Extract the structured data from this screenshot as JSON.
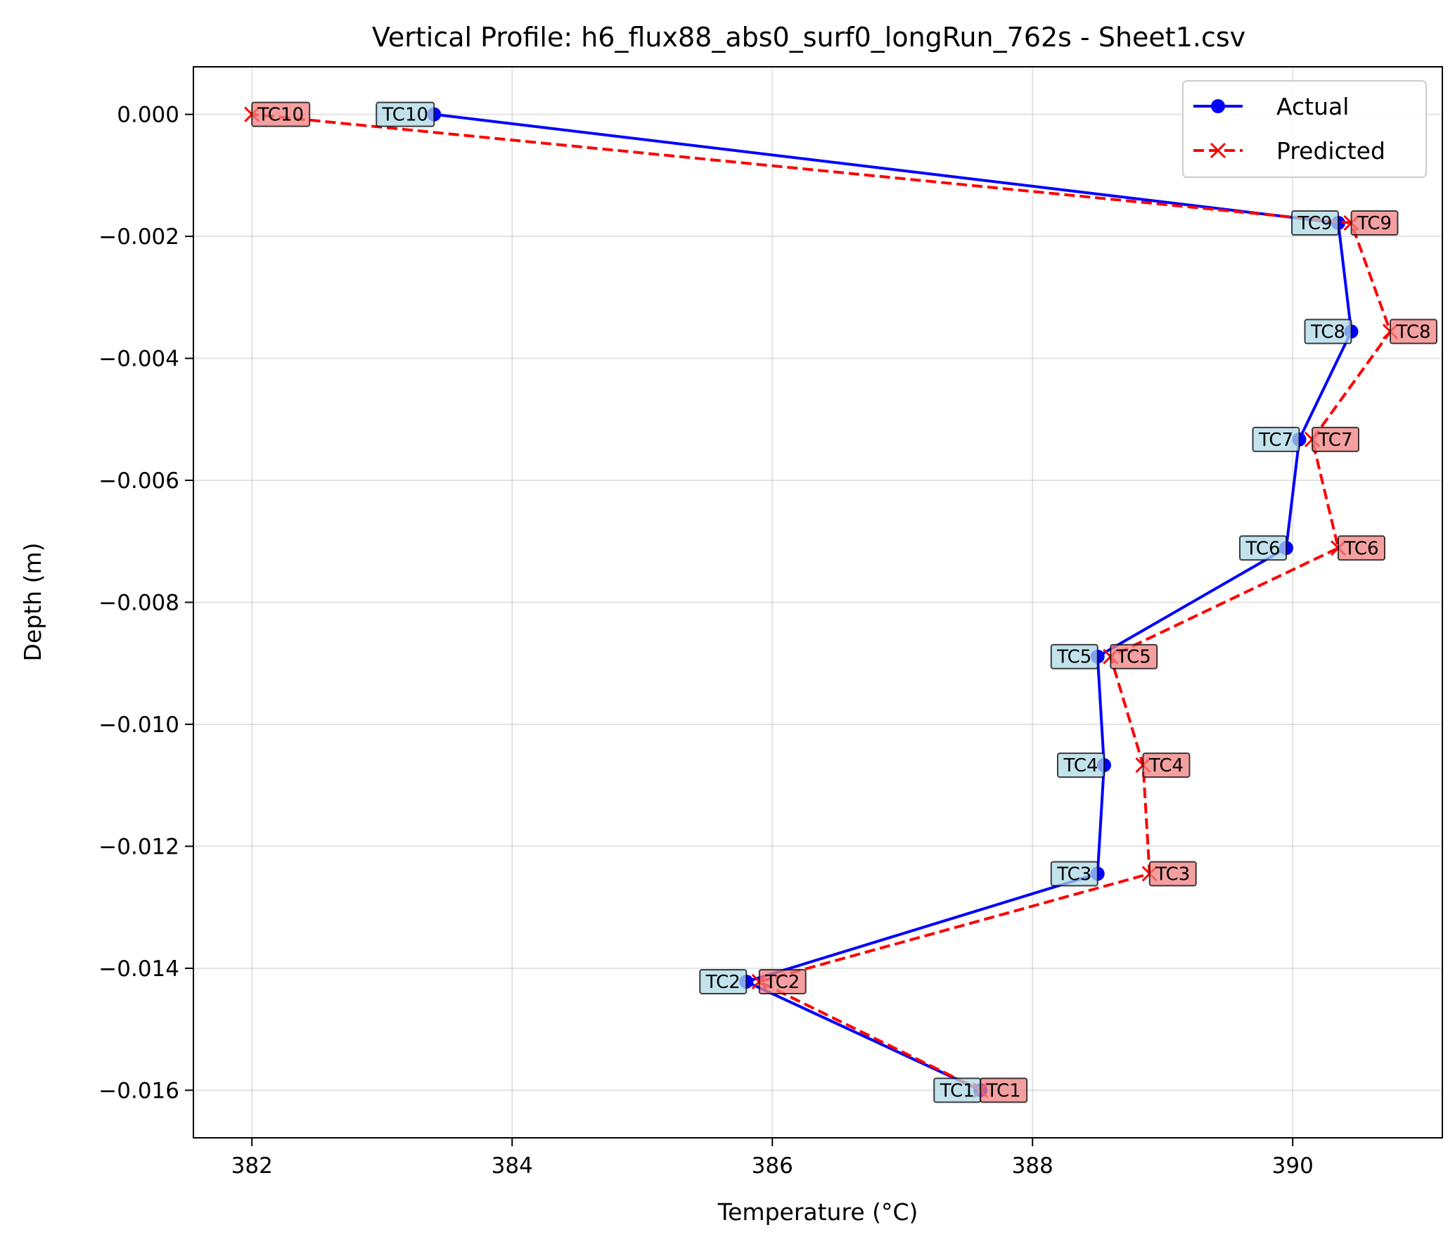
{
  "chart_data": {
    "type": "line",
    "title": "Vertical Profile: h6_flux88_abs0_surf0_longRun_762s - Sheet1.csv",
    "xlabel": "Temperature (°C)",
    "ylabel": "Depth (m)",
    "xlim": [
      381.55,
      391.15
    ],
    "ylim": [
      -0.01678,
      0.00078
    ],
    "xticks": [
      382,
      384,
      386,
      388,
      390
    ],
    "xtick_labels": [
      "382",
      "384",
      "386",
      "388",
      "390"
    ],
    "yticks": [
      0.0,
      -0.002,
      -0.004,
      -0.006,
      -0.008,
      -0.01,
      -0.012,
      -0.014,
      -0.016
    ],
    "ytick_labels": [
      "0.000",
      "−0.002",
      "−0.004",
      "−0.006",
      "−0.008",
      "−0.010",
      "−0.012",
      "−0.014",
      "−0.016"
    ],
    "grid": true,
    "legend_position": "upper-right",
    "series": [
      {
        "name": "Actual",
        "color": "#0000ff",
        "line_style": "solid",
        "marker": "circle",
        "label_box_color": "#add8e6",
        "points": [
          {
            "label": "TC1",
            "temperature": 387.6,
            "depth": -0.016
          },
          {
            "label": "TC2",
            "temperature": 385.8,
            "depth": -0.01422
          },
          {
            "label": "TC3",
            "temperature": 388.5,
            "depth": -0.01245
          },
          {
            "label": "TC4",
            "temperature": 388.55,
            "depth": -0.01067
          },
          {
            "label": "TC5",
            "temperature": 388.5,
            "depth": -0.00889
          },
          {
            "label": "TC6",
            "temperature": 389.95,
            "depth": -0.00711
          },
          {
            "label": "TC7",
            "temperature": 390.05,
            "depth": -0.00533
          },
          {
            "label": "TC8",
            "temperature": 390.45,
            "depth": -0.00356
          },
          {
            "label": "TC9",
            "temperature": 390.35,
            "depth": -0.00178
          },
          {
            "label": "TC10",
            "temperature": 383.4,
            "depth": 0.0
          }
        ]
      },
      {
        "name": "Predicted",
        "color": "#ff0000",
        "line_style": "dashed",
        "marker": "x",
        "label_box_color": "#f08080",
        "points": [
          {
            "label": "TC1",
            "temperature": 387.6,
            "depth": -0.016
          },
          {
            "label": "TC2",
            "temperature": 385.9,
            "depth": -0.01422
          },
          {
            "label": "TC3",
            "temperature": 388.9,
            "depth": -0.01245
          },
          {
            "label": "TC4",
            "temperature": 388.85,
            "depth": -0.01067
          },
          {
            "label": "TC5",
            "temperature": 388.6,
            "depth": -0.00889
          },
          {
            "label": "TC6",
            "temperature": 390.35,
            "depth": -0.00711
          },
          {
            "label": "TC7",
            "temperature": 390.15,
            "depth": -0.00533
          },
          {
            "label": "TC8",
            "temperature": 390.75,
            "depth": -0.00356
          },
          {
            "label": "TC9",
            "temperature": 390.45,
            "depth": -0.00178
          },
          {
            "label": "TC10",
            "temperature": 382.0,
            "depth": 0.0
          }
        ]
      }
    ]
  }
}
